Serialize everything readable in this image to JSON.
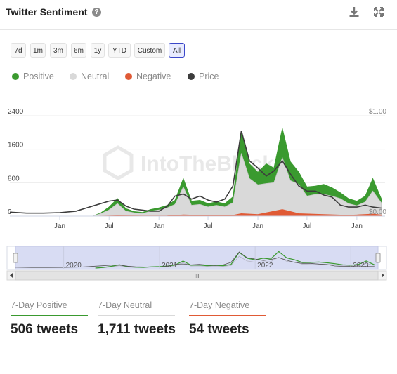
{
  "header": {
    "title": "Twitter Sentiment",
    "help_glyph": "?",
    "download_icon": "download-icon",
    "expand_icon": "expand-icon"
  },
  "ranges": [
    {
      "label": "7d",
      "active": false
    },
    {
      "label": "1m",
      "active": false
    },
    {
      "label": "3m",
      "active": false
    },
    {
      "label": "6m",
      "active": false
    },
    {
      "label": "1y",
      "active": false
    },
    {
      "label": "YTD",
      "active": false
    },
    {
      "label": "Custom",
      "active": false
    },
    {
      "label": "All",
      "active": true
    }
  ],
  "legend": [
    {
      "label": "Positive",
      "color": "#3a9a2f"
    },
    {
      "label": "Neutral",
      "color": "#d9d9d9"
    },
    {
      "label": "Negative",
      "color": "#e05a35"
    },
    {
      "label": "Price",
      "color": "#3c3c3c"
    }
  ],
  "watermark": "IntoTheBlock",
  "navigator": {
    "year_labels": [
      "2020",
      "2021",
      "2022",
      "2023"
    ],
    "grip": "III"
  },
  "chart_data": {
    "type": "area",
    "title": "Twitter Sentiment",
    "ylabel": "",
    "y_ticks": [
      "0",
      "800",
      "1600",
      "2400"
    ],
    "ylim": [
      0,
      2400
    ],
    "y2_ticks": [
      "$0.00",
      "$1.00"
    ],
    "y2lim": [
      0,
      1.0
    ],
    "x_ticks": [
      "Jan",
      "Jul",
      "Jan",
      "Jul",
      "Jan",
      "Jul",
      "Jan"
    ],
    "x_tick_dates": [
      "2020-01-01",
      "2020-07-01",
      "2021-01-01",
      "2021-07-01",
      "2022-01-01",
      "2022-07-01",
      "2023-01-01"
    ],
    "xlim": [
      "2019-07-01",
      "2023-04-15"
    ],
    "grid": true,
    "legend_position": "top-left",
    "series": [
      {
        "name": "Neutral",
        "color": "#d9d9d9",
        "x": [
          "2020-05-01",
          "2020-06-01",
          "2020-07-01",
          "2020-08-01",
          "2020-09-01",
          "2020-10-01",
          "2020-11-01",
          "2020-12-01",
          "2021-01-01",
          "2021-02-01",
          "2021-03-01",
          "2021-04-01",
          "2021-05-01",
          "2021-06-01",
          "2021-07-01",
          "2021-08-01",
          "2021-09-01",
          "2021-10-01",
          "2021-11-01",
          "2021-12-01",
          "2022-01-01",
          "2022-02-01",
          "2022-03-01",
          "2022-04-01",
          "2022-05-01",
          "2022-06-01",
          "2022-07-01",
          "2022-08-01",
          "2022-09-01",
          "2022-10-01",
          "2022-11-01",
          "2022-12-01",
          "2023-01-01",
          "2023-02-01",
          "2023-03-01",
          "2023-04-01"
        ],
        "values": [
          0,
          60,
          150,
          300,
          120,
          80,
          60,
          120,
          150,
          200,
          280,
          700,
          260,
          280,
          220,
          260,
          220,
          320,
          1500,
          900,
          750,
          780,
          800,
          1400,
          850,
          760,
          480,
          520,
          520,
          480,
          420,
          300,
          250,
          340,
          600,
          320
        ]
      },
      {
        "name": "Positive",
        "color": "#3a9a2f",
        "x": [
          "2020-05-01",
          "2020-06-01",
          "2020-07-01",
          "2020-08-01",
          "2020-09-01",
          "2020-10-01",
          "2020-11-01",
          "2020-12-01",
          "2021-01-01",
          "2021-02-01",
          "2021-03-01",
          "2021-04-01",
          "2021-05-01",
          "2021-06-01",
          "2021-07-01",
          "2021-08-01",
          "2021-09-01",
          "2021-10-01",
          "2021-11-01",
          "2021-12-01",
          "2022-01-01",
          "2022-02-01",
          "2022-03-01",
          "2022-04-01",
          "2022-05-01",
          "2022-06-01",
          "2022-07-01",
          "2022-08-01",
          "2022-09-01",
          "2022-10-01",
          "2022-11-01",
          "2022-12-01",
          "2023-01-01",
          "2023-02-01",
          "2023-03-01",
          "2023-04-01"
        ],
        "values": [
          0,
          80,
          220,
          420,
          180,
          110,
          90,
          160,
          200,
          260,
          380,
          900,
          360,
          380,
          300,
          340,
          300,
          460,
          2000,
          1250,
          1050,
          1250,
          1150,
          2100,
          1300,
          1050,
          700,
          720,
          760,
          680,
          560,
          420,
          360,
          480,
          900,
          420
        ]
      },
      {
        "name": "Negative",
        "color": "#e05a35",
        "x": [
          "2020-05-01",
          "2020-08-01",
          "2020-11-01",
          "2021-02-01",
          "2021-04-01",
          "2021-07-01",
          "2021-10-01",
          "2021-11-01",
          "2022-01-01",
          "2022-04-01",
          "2022-06-01",
          "2022-09-01",
          "2022-12-01",
          "2023-03-01",
          "2023-04-01"
        ],
        "values": [
          0,
          10,
          5,
          8,
          30,
          15,
          20,
          60,
          40,
          160,
          60,
          40,
          20,
          50,
          30
        ]
      },
      {
        "name": "Price",
        "color": "#3c3c3c",
        "axis": "right",
        "x": [
          "2019-07-01",
          "2019-09-01",
          "2019-11-01",
          "2020-01-01",
          "2020-03-01",
          "2020-05-01",
          "2020-07-01",
          "2020-08-01",
          "2020-09-01",
          "2020-10-01",
          "2020-11-01",
          "2020-12-01",
          "2021-01-01",
          "2021-02-01",
          "2021-03-01",
          "2021-04-01",
          "2021-05-01",
          "2021-06-01",
          "2021-07-01",
          "2021-08-01",
          "2021-09-01",
          "2021-10-01",
          "2021-11-01",
          "2021-12-01",
          "2022-01-01",
          "2022-02-01",
          "2022-03-01",
          "2022-04-01",
          "2022-05-01",
          "2022-06-01",
          "2022-07-01",
          "2022-08-01",
          "2022-09-01",
          "2022-10-01",
          "2022-11-01",
          "2022-12-01",
          "2023-01-01",
          "2023-02-01",
          "2023-03-01",
          "2023-04-01"
        ],
        "values": [
          0.04,
          0.03,
          0.03,
          0.035,
          0.05,
          0.1,
          0.15,
          0.16,
          0.1,
          0.07,
          0.06,
          0.05,
          0.05,
          0.1,
          0.2,
          0.22,
          0.17,
          0.2,
          0.16,
          0.14,
          0.17,
          0.3,
          0.85,
          0.55,
          0.48,
          0.4,
          0.45,
          0.55,
          0.42,
          0.3,
          0.25,
          0.25,
          0.21,
          0.19,
          0.11,
          0.09,
          0.09,
          0.11,
          0.09,
          0.08
        ]
      }
    ]
  },
  "stats": [
    {
      "label": "7-Day Positive",
      "value": "506 tweets",
      "color": "#3a9a2f"
    },
    {
      "label": "7-Day Neutral",
      "value": "1,711 tweets",
      "color": "#d9d9d9"
    },
    {
      "label": "7-Day Negative",
      "value": "54 tweets",
      "color": "#e05a35"
    }
  ]
}
